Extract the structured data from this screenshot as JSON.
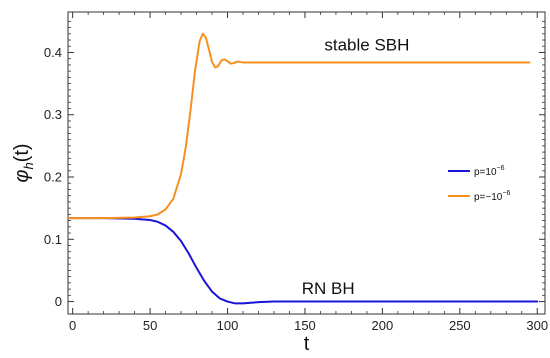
{
  "chart_data": {
    "type": "line",
    "title": "",
    "xlabel": "t",
    "ylabel_base": "φ",
    "ylabel_sub": "h",
    "ylabel_arg": "(t)",
    "xlim": [
      -3,
      305
    ],
    "ylim": [
      -0.02,
      0.465
    ],
    "xticks": [
      0,
      50,
      100,
      150,
      200,
      250,
      300
    ],
    "xtick_labels": [
      "0",
      "50",
      "100",
      "150",
      "200",
      "250",
      "300"
    ],
    "yticks": [
      0,
      0.1,
      0.2,
      0.3,
      0.4
    ],
    "ytick_labels": [
      "0",
      "0.1",
      "0.2",
      "0.3",
      "0.4"
    ],
    "grid": false,
    "legend_position": "right",
    "annotations": [
      {
        "text": "stable SBH",
        "x": 190,
        "y": 0.403
      },
      {
        "text": "RN BH",
        "x": 165,
        "y": 0.012
      }
    ],
    "series": [
      {
        "name_base": "p=10",
        "name_exp": "−6",
        "color": "#1a14d6",
        "x": [
          -3,
          20,
          40,
          50,
          55,
          60,
          65,
          70,
          75,
          80,
          85,
          90,
          95,
          100,
          105,
          110,
          115,
          120,
          130,
          150,
          200,
          250,
          300
        ],
        "y": [
          0.134,
          0.134,
          0.133,
          0.131,
          0.128,
          0.122,
          0.112,
          0.097,
          0.077,
          0.054,
          0.033,
          0.016,
          0.005,
          0.0,
          -0.003,
          -0.003,
          -0.002,
          -0.001,
          0.0,
          0.0,
          0.0,
          0.0,
          0.0
        ]
      },
      {
        "name_base": "p=−10",
        "name_exp": "−6",
        "color": "#f7901e",
        "x": [
          -3,
          20,
          40,
          50,
          55,
          60,
          65,
          70,
          73,
          76,
          79,
          82,
          84,
          86,
          88,
          90,
          92,
          94,
          96,
          98,
          100,
          102,
          104,
          106,
          108,
          110,
          115,
          120,
          150,
          200,
          250,
          295
        ],
        "y": [
          0.134,
          0.134,
          0.135,
          0.137,
          0.14,
          0.148,
          0.165,
          0.205,
          0.247,
          0.305,
          0.37,
          0.418,
          0.43,
          0.424,
          0.405,
          0.385,
          0.376,
          0.378,
          0.387,
          0.389,
          0.386,
          0.382,
          0.383,
          0.385,
          0.385,
          0.384,
          0.384,
          0.384,
          0.384,
          0.384,
          0.384,
          0.384
        ]
      }
    ]
  }
}
